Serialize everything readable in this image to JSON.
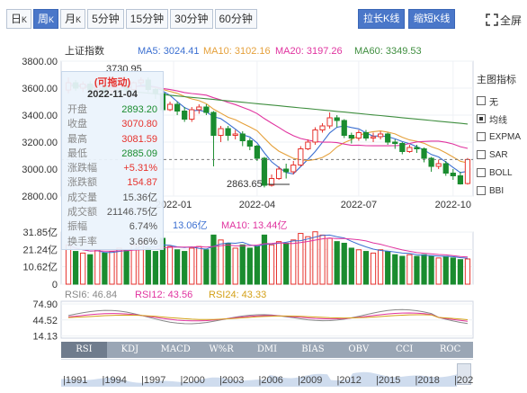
{
  "period_tabs": [
    {
      "label": "日",
      "sub": "K",
      "active": false
    },
    {
      "label": "周",
      "sub": "K",
      "active": true
    },
    {
      "label": "月",
      "sub": "K",
      "active": false
    },
    {
      "label": "5分钟",
      "sub": "",
      "active": false
    },
    {
      "label": "15分钟",
      "sub": "",
      "active": false
    },
    {
      "label": "30分钟",
      "sub": "",
      "active": false
    },
    {
      "label": "60分钟",
      "sub": "",
      "active": false
    }
  ],
  "actions": {
    "stretch": "拉长K线",
    "shrink": "缩短K线",
    "fullscreen": "全屏"
  },
  "price_panel": {
    "index_name": "上证指数",
    "ma_legend": [
      {
        "label": "MA5: 3024.41",
        "color": "#3b6fd1"
      },
      {
        "label": "MA10: 3102.16",
        "color": "#e5a03a"
      },
      {
        "label": "MA20: 3197.26",
        "color": "#e0339f"
      },
      {
        "label": "MA60: 3349.53",
        "color": "#3f8e3f"
      }
    ],
    "y_ticks": [
      "3800.00",
      "3600.00",
      "3400.00",
      "3200.00",
      "3000.00",
      "2800.00"
    ],
    "x_labels": [
      "2022-01",
      "2022-04",
      "2022-07",
      "2022-10"
    ],
    "top_label": "3730.95",
    "low_label": "2863.65"
  },
  "popup": {
    "draggable": "(可拖动)",
    "date": "2022-11-04",
    "rows": [
      {
        "label": "开盘",
        "value": "2893.20",
        "tone": "green"
      },
      {
        "label": "收盘",
        "value": "3070.80",
        "tone": "red"
      },
      {
        "label": "最高",
        "value": "3081.59",
        "tone": "red"
      },
      {
        "label": "最低",
        "value": "2885.09",
        "tone": "green"
      },
      {
        "label": "涨跌幅",
        "value": "+5.31%",
        "tone": "red"
      },
      {
        "label": "涨跌额",
        "value": "154.87",
        "tone": "red"
      },
      {
        "label": "成交量",
        "value": "15.36亿",
        "tone": "dark"
      },
      {
        "label": "成交额",
        "value": "21146.75亿",
        "tone": "dark"
      },
      {
        "label": "振幅",
        "value": "6.74%",
        "tone": "dark"
      },
      {
        "label": "换手率",
        "value": "3.66%",
        "tone": "dark"
      }
    ]
  },
  "volume_panel": {
    "legend": [
      {
        "label": "13.06亿",
        "color": "#3b6fd1"
      },
      {
        "label": "MA10: 13.44亿",
        "color": "#e0339f"
      }
    ],
    "y_ticks": [
      "31.85亿",
      "21.24亿",
      "10.62亿",
      "0"
    ]
  },
  "rsi_panel": {
    "legend": [
      {
        "label": "RSI6: 46.84",
        "color": "#888888"
      },
      {
        "label": "RSI12: 43.56",
        "color": "#e0339f"
      },
      {
        "label": "RSI24: 43.33",
        "color": "#d4a017"
      }
    ],
    "y_ticks": [
      "74.90",
      "44.52",
      "14.13"
    ]
  },
  "indicator_tabs": [
    "RSI",
    "KDJ",
    "MACD",
    "W%R",
    "DMI",
    "BIAS",
    "OBV",
    "CCI",
    "ROC"
  ],
  "timeline_years": [
    "1991",
    "1994",
    "1997",
    "2000",
    "2003",
    "2006",
    "2009",
    "2012",
    "2015",
    "2018",
    "202"
  ],
  "side_panel": {
    "title": "主图指标",
    "options": [
      {
        "label": "无",
        "checked": false
      },
      {
        "label": "均线",
        "checked": true
      },
      {
        "label": "EXPMA",
        "checked": false
      },
      {
        "label": "SAR",
        "checked": false
      },
      {
        "label": "BOLL",
        "checked": false
      },
      {
        "label": "BBI",
        "checked": false
      }
    ]
  },
  "colors": {
    "up": "#e6322d",
    "down": "#1a8c2f",
    "accent": "#4a77c9"
  },
  "chart_data": {
    "type": "candlestick",
    "title": "上证指数",
    "ylim": [
      2800,
      3800
    ],
    "candles": [
      [
        3586,
        3640,
        3560,
        3680
      ],
      [
        3640,
        3600,
        3580,
        3660
      ],
      [
        3600,
        3630,
        3570,
        3650
      ],
      [
        3630,
        3590,
        3560,
        3650
      ],
      [
        3590,
        3620,
        3570,
        3640
      ],
      [
        3620,
        3580,
        3550,
        3640
      ],
      [
        3580,
        3600,
        3560,
        3620
      ],
      [
        3600,
        3620,
        3580,
        3640
      ],
      [
        3620,
        3590,
        3570,
        3640
      ],
      [
        3590,
        3640,
        3580,
        3650
      ],
      [
        3640,
        3660,
        3620,
        3680
      ],
      [
        3660,
        3590,
        3570,
        3680
      ],
      [
        3590,
        3560,
        3520,
        3600
      ],
      [
        3560,
        3440,
        3420,
        3570
      ],
      [
        3440,
        3480,
        3430,
        3500
      ],
      [
        3480,
        3430,
        3400,
        3500
      ],
      [
        3430,
        3370,
        3350,
        3460
      ],
      [
        3370,
        3440,
        3350,
        3460
      ],
      [
        3440,
        3460,
        3410,
        3480
      ],
      [
        3460,
        3420,
        3400,
        3480
      ],
      [
        3420,
        3250,
        3020,
        3430
      ],
      [
        3250,
        3300,
        3200,
        3320
      ],
      [
        3300,
        3250,
        3210,
        3320
      ],
      [
        3250,
        3260,
        3220,
        3290
      ],
      [
        3260,
        3210,
        3170,
        3280
      ],
      [
        3210,
        3170,
        3140,
        3230
      ],
      [
        3170,
        3080,
        3060,
        3180
      ],
      [
        3080,
        2880,
        2864,
        3090
      ],
      [
        2880,
        2930,
        2870,
        2960
      ],
      [
        2930,
        3000,
        2920,
        3020
      ],
      [
        3000,
        2980,
        2930,
        3040
      ],
      [
        2980,
        3030,
        2960,
        3060
      ],
      [
        3030,
        3150,
        3020,
        3170
      ],
      [
        3150,
        3200,
        3140,
        3220
      ],
      [
        3200,
        3290,
        3180,
        3310
      ],
      [
        3290,
        3320,
        3270,
        3340
      ],
      [
        3320,
        3380,
        3300,
        3420
      ],
      [
        3380,
        3360,
        3310,
        3400
      ],
      [
        3360,
        3250,
        3230,
        3370
      ],
      [
        3250,
        3230,
        3190,
        3270
      ],
      [
        3230,
        3270,
        3210,
        3290
      ],
      [
        3270,
        3230,
        3210,
        3290
      ],
      [
        3230,
        3240,
        3200,
        3270
      ],
      [
        3240,
        3260,
        3220,
        3280
      ],
      [
        3260,
        3200,
        3180,
        3270
      ],
      [
        3200,
        3190,
        3150,
        3220
      ],
      [
        3190,
        3130,
        3110,
        3200
      ],
      [
        3130,
        3160,
        3120,
        3180
      ],
      [
        3160,
        3150,
        3120,
        3180
      ],
      [
        3150,
        3080,
        3050,
        3160
      ],
      [
        3080,
        3020,
        2980,
        3090
      ],
      [
        3020,
        3040,
        3000,
        3070
      ],
      [
        3040,
        2970,
        2950,
        3060
      ],
      [
        2970,
        2950,
        2920,
        3000
      ],
      [
        2950,
        2890,
        2885,
        2980
      ],
      [
        2893,
        3071,
        2885,
        3082
      ]
    ],
    "volume": [
      24,
      20,
      19,
      18,
      21,
      19,
      20,
      22,
      21,
      24,
      26,
      22,
      20,
      28,
      23,
      21,
      20,
      22,
      23,
      21,
      30,
      27,
      25,
      22,
      24,
      22,
      23,
      30,
      24,
      26,
      25,
      27,
      31,
      29,
      32,
      30,
      28,
      26,
      25,
      22,
      21,
      20,
      19,
      21,
      20,
      18,
      17,
      18,
      17,
      18,
      17,
      16,
      17,
      16,
      15,
      15.4
    ],
    "x_labels": [
      "2022-01",
      "2022-04",
      "2022-07",
      "2022-10"
    ]
  }
}
